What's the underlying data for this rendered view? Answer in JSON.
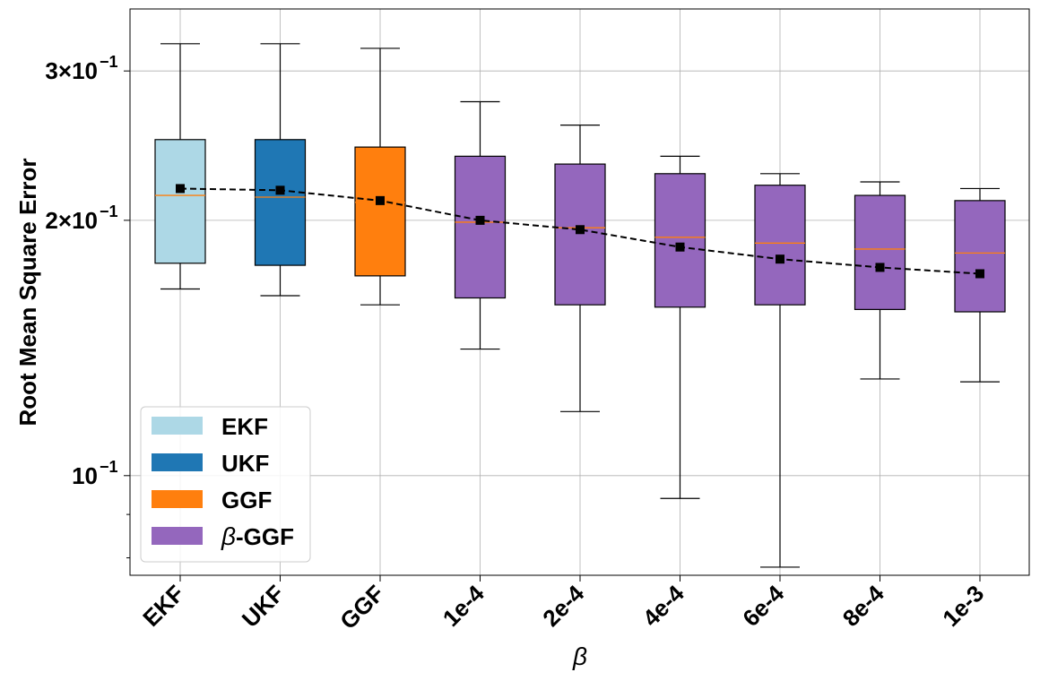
{
  "chart_data": {
    "type": "box",
    "ylabel": "Root Mean Square Error",
    "xlabel": "β",
    "yscale": "log",
    "ylim": [
      0.0763,
      0.355
    ],
    "grid": true,
    "categories": [
      "EKF",
      "UKF",
      "GGF",
      "1e-4",
      "2e-4",
      "4e-4",
      "6e-4",
      "8e-4",
      "1e-3"
    ],
    "y_ticks": [
      {
        "value": 0.1,
        "base": "10",
        "exp": "−1"
      },
      {
        "value": 0.2,
        "base": "2×10",
        "exp": "−1"
      },
      {
        "value": 0.3,
        "base": "3×10",
        "exp": "−1"
      }
    ],
    "boxes": [
      {
        "category": "EKF",
        "color": "#add8e6",
        "whisker_low": 0.166,
        "q1": 0.178,
        "median": 0.214,
        "q3": 0.249,
        "whisker_high": 0.323,
        "mean": 0.218
      },
      {
        "category": "UKF",
        "color": "#1f77b4",
        "whisker_low": 0.163,
        "q1": 0.177,
        "median": 0.213,
        "q3": 0.249,
        "whisker_high": 0.323,
        "mean": 0.217
      },
      {
        "category": "GGF",
        "color": "#ff7f0e",
        "whisker_low": 0.159,
        "q1": 0.172,
        "median": 0.21,
        "q3": 0.244,
        "whisker_high": 0.319,
        "mean": 0.211
      },
      {
        "category": "1e-4",
        "color": "#9467bd",
        "whisker_low": 0.141,
        "q1": 0.162,
        "median": 0.199,
        "q3": 0.238,
        "whisker_high": 0.276,
        "mean": 0.2
      },
      {
        "category": "2e-4",
        "color": "#9467bd",
        "whisker_low": 0.119,
        "q1": 0.159,
        "median": 0.196,
        "q3": 0.233,
        "whisker_high": 0.259,
        "mean": 0.195
      },
      {
        "category": "4e-4",
        "color": "#9467bd",
        "whisker_low": 0.094,
        "q1": 0.158,
        "median": 0.191,
        "q3": 0.227,
        "whisker_high": 0.238,
        "mean": 0.186
      },
      {
        "category": "6e-4",
        "color": "#9467bd",
        "whisker_low": 0.078,
        "q1": 0.159,
        "median": 0.188,
        "q3": 0.22,
        "whisker_high": 0.227,
        "mean": 0.18
      },
      {
        "category": "8e-4",
        "color": "#9467bd",
        "whisker_low": 0.13,
        "q1": 0.157,
        "median": 0.185,
        "q3": 0.214,
        "whisker_high": 0.222,
        "mean": 0.176
      },
      {
        "category": "1e-3",
        "color": "#9467bd",
        "whisker_low": 0.129,
        "q1": 0.156,
        "median": 0.183,
        "q3": 0.211,
        "whisker_high": 0.218,
        "mean": 0.173
      }
    ],
    "legend": {
      "placement": "lower-left",
      "entries": [
        {
          "label": "EKF",
          "color": "#add8e6",
          "italic_prefix": ""
        },
        {
          "label": "UKF",
          "color": "#1f77b4",
          "italic_prefix": ""
        },
        {
          "label": "GGF",
          "color": "#ff7f0e",
          "italic_prefix": ""
        },
        {
          "label": "-GGF",
          "color": "#9467bd",
          "italic_prefix": "β"
        }
      ]
    },
    "median_color": "#ff7f0e",
    "mean_line_color": "#000000"
  }
}
